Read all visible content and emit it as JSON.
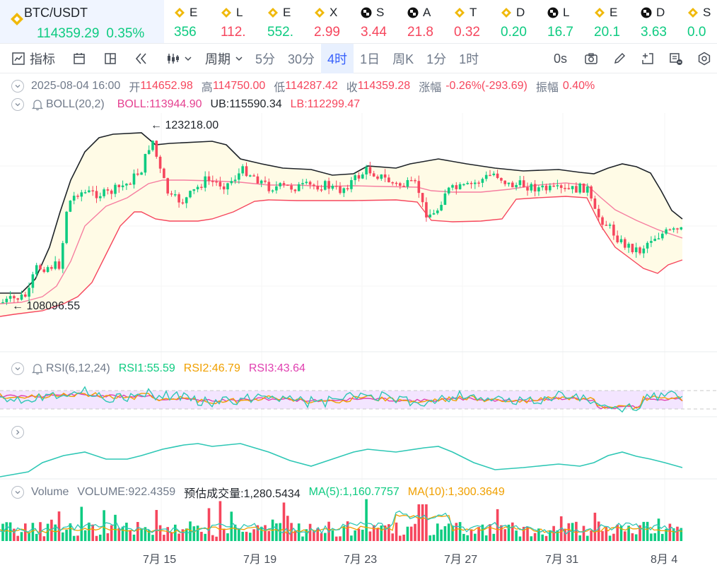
{
  "ticker": {
    "main": {
      "symbol": "BTC/USDT",
      "price": "114359.29",
      "change": "0.35%"
    },
    "items": [
      {
        "letter": "E",
        "value": "356",
        "dir": "up",
        "icon": "bnb-icon"
      },
      {
        "letter": "L",
        "value": "112.",
        "dir": "down",
        "icon": "bnb-icon"
      },
      {
        "letter": "E",
        "value": "552.",
        "dir": "up",
        "icon": "bnb-icon"
      },
      {
        "letter": "X",
        "value": "2.99",
        "dir": "down",
        "icon": "bnb-icon"
      },
      {
        "letter": "S",
        "value": "3.44",
        "dir": "down",
        "icon": "checker-icon"
      },
      {
        "letter": "A",
        "value": "21.8",
        "dir": "down",
        "icon": "checker-icon"
      },
      {
        "letter": "T",
        "value": "0.32",
        "dir": "down",
        "icon": "bnb-icon"
      },
      {
        "letter": "D",
        "value": "0.20",
        "dir": "up",
        "icon": "bnb-icon"
      },
      {
        "letter": "L",
        "value": "16.7",
        "dir": "up",
        "icon": "checker-icon"
      },
      {
        "letter": "E",
        "value": "20.1",
        "dir": "up",
        "icon": "bnb-icon"
      },
      {
        "letter": "D",
        "value": "3.63",
        "dir": "up",
        "icon": "checker-icon"
      },
      {
        "letter": "S",
        "value": "0.0",
        "dir": "up",
        "icon": "bnb-icon"
      }
    ]
  },
  "toolbar": {
    "indicators_label": "指标",
    "period_label": "周期",
    "intervals": [
      "5分",
      "30分",
      "4时",
      "1日",
      "周K",
      "1分",
      "1时"
    ],
    "active_interval": "4时",
    "countdown": "0s"
  },
  "ohlc": {
    "datetime": "2025-08-04 16:00",
    "open_label": "开",
    "open": "114652.98",
    "high_label": "高",
    "high": "114750.00",
    "low_label": "低",
    "low": "114287.42",
    "close_label": "收",
    "close": "114359.28",
    "change_label": "涨幅",
    "change": "-0.26%(-293.69)",
    "amplitude_label": "振幅",
    "amplitude": "0.40%"
  },
  "boll": {
    "name": "BOLL(20,2)",
    "boll": "BOLL:113944.90",
    "ub": "UB:115590.34",
    "lb": "LB:112299.47"
  },
  "price_marks": {
    "high": "123218.00",
    "low": "108096.55"
  },
  "rsi": {
    "name": "RSI(6,12,24)",
    "rsi1": "RSI1:55.59",
    "rsi2": "RSI2:46.79",
    "rsi3": "RSI3:43.64"
  },
  "volume": {
    "name": "Volume",
    "volume": "VOLUME:922.4359",
    "estimated": "预估成交量:1,280.5434",
    "ma5": "MA(5):1,160.7757",
    "ma10": "MA(10):1,300.3649"
  },
  "x_axis": [
    "7月 15",
    "7月 19",
    "7月 23",
    "7月 27",
    "7月 31",
    "8月 4"
  ],
  "colors": {
    "up": "#0ecb81",
    "down": "#f6465d",
    "accent": "#3861fb",
    "ub_line": "#1e2329",
    "lb_line": "#f6465d",
    "mid_line": "#f67ea0",
    "band_fill": "#fffbe6",
    "rsi1": "#2ec7b5",
    "rsi2": "#f0a000",
    "rsi3": "#e040b0",
    "rsi_band": "#f3e5ff"
  }
}
